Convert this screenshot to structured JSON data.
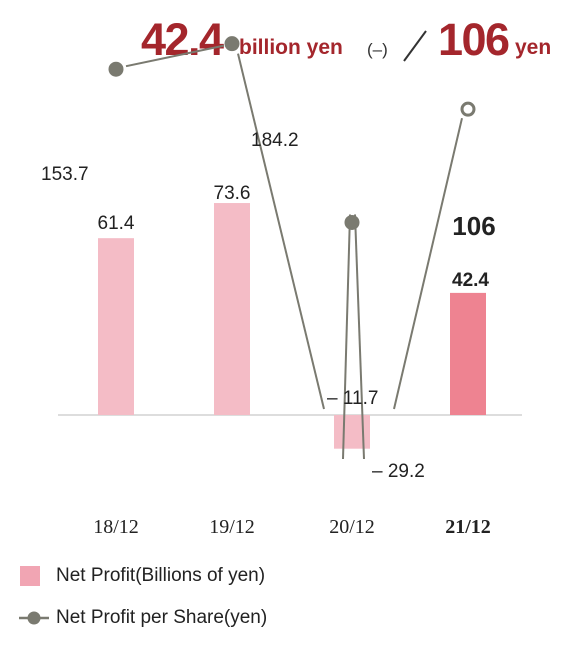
{
  "headline": {
    "profit_value": "42.4",
    "profit_unit": "billion yen",
    "change": "(–)",
    "eps_value": "106",
    "eps_unit": "yen"
  },
  "colors": {
    "accent": "#a4262c",
    "bar": "#f4bcc6",
    "bar_highlight": "#ee8391",
    "line": "#7a7a70"
  },
  "legend": [
    {
      "label": "Net Profit(Billions of yen)",
      "icon": "bar-swatch-icon"
    },
    {
      "label": "Net Profit per Share(yen)",
      "icon": "line-marker-icon"
    }
  ],
  "chart_data": {
    "type": "bar",
    "categories": [
      "18/12",
      "19/12",
      "20/12",
      "21/12"
    ],
    "series": [
      {
        "name": "Net Profit(Billions of yen)",
        "type": "bar",
        "values": [
          61.4,
          73.6,
          -11.7,
          42.4
        ],
        "labels": [
          "61.4",
          "73.6",
          "– 11.7",
          "42.4"
        ]
      },
      {
        "name": "Net Profit per Share(yen)",
        "type": "line",
        "values": [
          153.7,
          184.2,
          -29.2,
          106
        ],
        "labels": [
          "153.7",
          "184.2",
          "– 29.2",
          "106"
        ]
      }
    ],
    "highlight_category": "21/12",
    "grid": false,
    "legend_position": "bottom-left"
  }
}
